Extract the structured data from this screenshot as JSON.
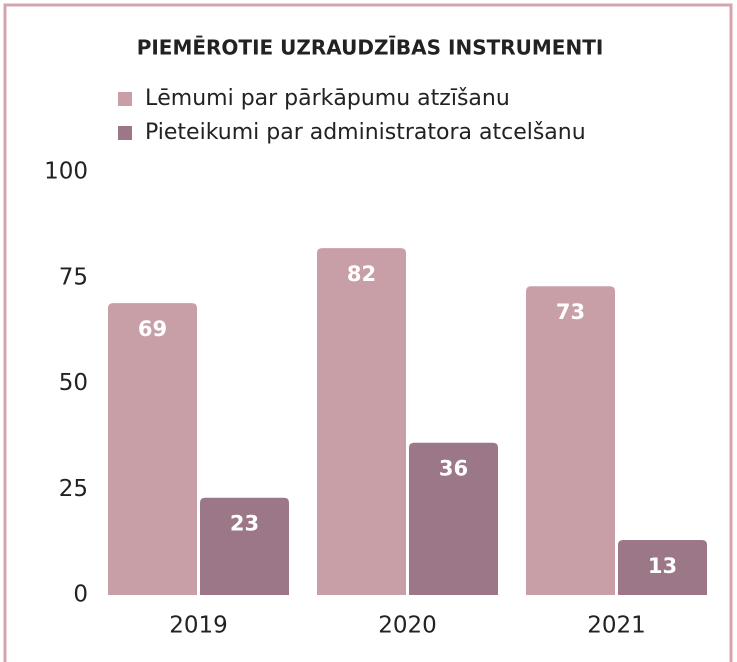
{
  "chart_data": {
    "type": "bar",
    "title": "PIEMĒROTIE UZRAUDZĪBAS INSTRUMENTI",
    "categories": [
      "2019",
      "2020",
      "2021"
    ],
    "series": [
      {
        "name": "Lēmumi par pārkāpumu atzīšanu",
        "color": "#c89fa6",
        "values": [
          69,
          82,
          73
        ]
      },
      {
        "name": "Pieteikumi par administratora atcelšanu",
        "color": "#9b7788",
        "values": [
          23,
          36,
          13
        ]
      }
    ],
    "ylim": [
      0,
      100
    ],
    "yticks": [
      0,
      25,
      50,
      75,
      100
    ],
    "grid": false,
    "legend": "top"
  }
}
